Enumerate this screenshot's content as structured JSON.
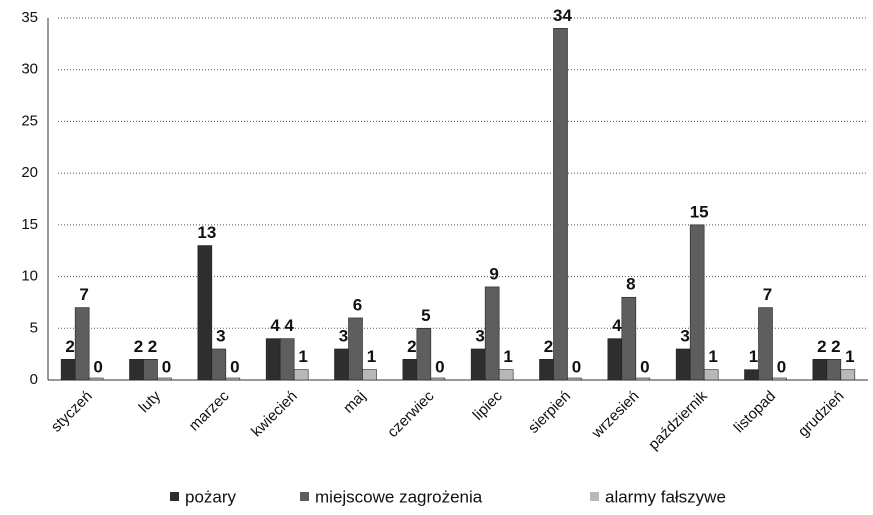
{
  "chart_data": {
    "type": "bar",
    "categories": [
      "styczeń",
      "luty",
      "marzec",
      "kwiecień",
      "maj",
      "czerwiec",
      "lipiec",
      "sierpień",
      "wrzesień",
      "październik",
      "listopad",
      "grudzień"
    ],
    "series": [
      {
        "name": "pożary",
        "color": "#2e2e2e",
        "values": [
          2,
          2,
          13,
          4,
          3,
          2,
          3,
          2,
          4,
          3,
          1,
          2
        ]
      },
      {
        "name": "miejscowe zagrożenia",
        "color": "#5e5e5e",
        "values": [
          7,
          2,
          3,
          4,
          6,
          5,
          9,
          34,
          8,
          15,
          7,
          2
        ]
      },
      {
        "name": "alarmy fałszywe",
        "color": "#b8b8b8",
        "values": [
          0,
          0,
          0,
          1,
          1,
          0,
          1,
          0,
          0,
          1,
          0,
          1
        ]
      }
    ],
    "ylim": [
      0,
      35
    ],
    "yticks": [
      0,
      5,
      10,
      15,
      20,
      25,
      30,
      35
    ],
    "grid": true
  }
}
